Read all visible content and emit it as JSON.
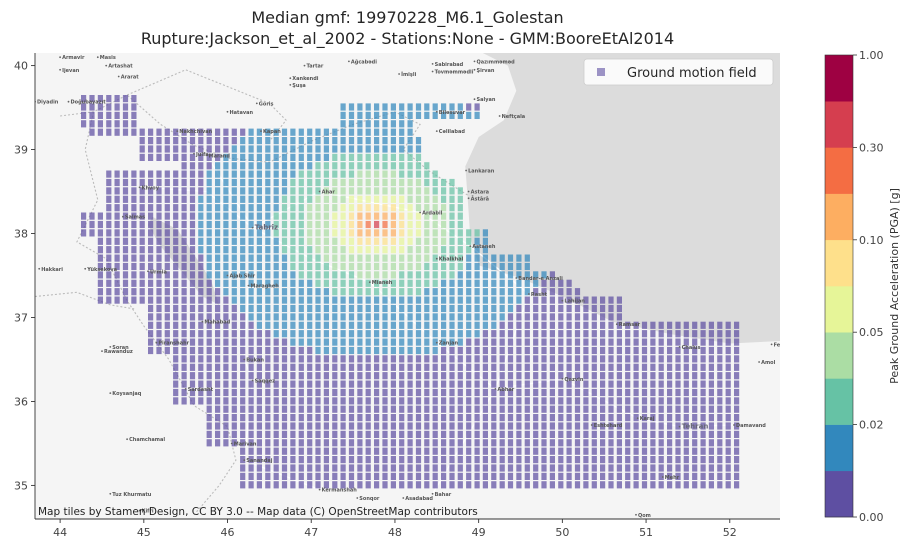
{
  "chart_data": {
    "type": "heatmap",
    "title": "Median gmf: 19970228_M6.1_Golestan",
    "subtitle": "Rupture:Jackson_et_al_2002 -  Stations:None - GMM:BooreEtAl2014",
    "x_ticks": [
      "44",
      "45",
      "46",
      "47",
      "48",
      "49",
      "50",
      "51",
      "52"
    ],
    "y_ticks": [
      "35",
      "36",
      "37",
      "38",
      "39",
      "40"
    ],
    "xlim": [
      43.7,
      52.6
    ],
    "ylim": [
      34.6,
      40.15
    ],
    "legend_label": "Ground motion field",
    "legend_location": "top-right",
    "colorbar_label": "Peak Ground Acceleration (PGA) [g]",
    "colorbar_ticks": [
      "0.00",
      "0.02",
      "0.05",
      "0.10",
      "0.30",
      "1.00"
    ],
    "colorbar_bounds": [
      0.0,
      0.01,
      0.02,
      0.03,
      0.05,
      0.07,
      0.1,
      0.2,
      0.3,
      0.5,
      1.0
    ],
    "colorbar_colors": [
      "#5e4fa2",
      "#3288bd",
      "#66c2a5",
      "#abdda4",
      "#e6f598",
      "#fee08b",
      "#fdae61",
      "#f46d43",
      "#d53e4f",
      "#9e0142"
    ],
    "epicenter": [
      47.8,
      38.1
    ],
    "grid_step_deg": 0.1,
    "attribution": "Map tiles by Stamen Design, CC BY 3.0 -- Map data (C) OpenStreetMap contributors",
    "map_labels": [
      {
        "name": "Armavir",
        "lon": 44.0,
        "lat": 40.1
      },
      {
        "name": "Masis",
        "lon": 44.45,
        "lat": 40.1
      },
      {
        "name": "Artashat",
        "lon": 44.55,
        "lat": 40.0
      },
      {
        "name": "Ijevan",
        "lon": 44.0,
        "lat": 39.95
      },
      {
        "name": "Ararat",
        "lon": 44.7,
        "lat": 39.87
      },
      {
        "name": "Diyadin",
        "lon": 43.7,
        "lat": 39.57
      },
      {
        "name": "Doğubayazıt",
        "lon": 44.1,
        "lat": 39.57
      },
      {
        "name": "Nakhchivan",
        "lon": 45.4,
        "lat": 39.22
      },
      {
        "name": "Julfa",
        "lon": 45.6,
        "lat": 38.95
      },
      {
        "name": "Hatavan",
        "lon": 46.0,
        "lat": 39.45
      },
      {
        "name": "Goris",
        "lon": 46.35,
        "lat": 39.55
      },
      {
        "name": "Kapan",
        "lon": 46.4,
        "lat": 39.22
      },
      {
        "name": "Xankendi",
        "lon": 46.75,
        "lat": 39.85
      },
      {
        "name": "Şuşa",
        "lon": 46.75,
        "lat": 39.77
      },
      {
        "name": "Tartar",
        "lon": 46.92,
        "lat": 40.0
      },
      {
        "name": "Ağcabədi",
        "lon": 47.45,
        "lat": 40.05
      },
      {
        "name": "İmişli",
        "lon": 48.05,
        "lat": 39.9
      },
      {
        "name": "Sabirabad",
        "lon": 48.45,
        "lat": 40.02
      },
      {
        "name": "Qazımməməd",
        "lon": 48.95,
        "lat": 40.05
      },
      {
        "name": "Şirvan",
        "lon": 48.95,
        "lat": 39.95
      },
      {
        "name": "Tovməmmədli",
        "lon": 48.45,
        "lat": 39.93
      },
      {
        "name": "Salyan",
        "lon": 48.95,
        "lat": 39.6
      },
      {
        "name": "Biləsuvar",
        "lon": 48.5,
        "lat": 39.45
      },
      {
        "name": "Neftçala",
        "lon": 49.25,
        "lat": 39.4
      },
      {
        "name": "Cəlilabad",
        "lon": 48.5,
        "lat": 39.22
      },
      {
        "name": "Lankaran",
        "lon": 48.85,
        "lat": 38.75
      },
      {
        "name": "Astara",
        "lon": 48.88,
        "lat": 38.5
      },
      {
        "name": "Āstārā",
        "lon": 48.88,
        "lat": 38.42
      },
      {
        "name": "Ahar",
        "lon": 47.1,
        "lat": 38.5
      },
      {
        "name": "Tabriz",
        "lon": 46.3,
        "lat": 38.07
      },
      {
        "name": "Marand",
        "lon": 45.75,
        "lat": 38.93
      },
      {
        "name": "Khvoy",
        "lon": 44.95,
        "lat": 38.55
      },
      {
        "name": "Salmas",
        "lon": 44.75,
        "lat": 38.2
      },
      {
        "name": "Ardabil",
        "lon": 48.3,
        "lat": 38.25
      },
      {
        "name": "Khalkhal",
        "lon": 48.5,
        "lat": 37.7
      },
      {
        "name": "Astaneh",
        "lon": 48.9,
        "lat": 37.85
      },
      {
        "name": "Mianeh",
        "lon": 47.7,
        "lat": 37.42
      },
      {
        "name": "Ajab Shir",
        "lon": 46.0,
        "lat": 37.5
      },
      {
        "name": "Maragheh",
        "lon": 46.25,
        "lat": 37.38
      },
      {
        "name": "Urmia",
        "lon": 45.05,
        "lat": 37.55
      },
      {
        "name": "Hakkari",
        "lon": 43.75,
        "lat": 37.58
      },
      {
        "name": "Yüksekova",
        "lon": 44.3,
        "lat": 37.58
      },
      {
        "name": "Mahabad",
        "lon": 45.7,
        "lat": 36.95
      },
      {
        "name": "Bukan",
        "lon": 46.2,
        "lat": 36.5
      },
      {
        "name": "Piranshahr",
        "lon": 45.15,
        "lat": 36.7
      },
      {
        "name": "Sardasht",
        "lon": 45.5,
        "lat": 36.15
      },
      {
        "name": "Saqqez",
        "lon": 46.3,
        "lat": 36.25
      },
      {
        "name": "Rawanduz",
        "lon": 44.5,
        "lat": 36.6
      },
      {
        "name": "Soran",
        "lon": 44.6,
        "lat": 36.65
      },
      {
        "name": "Koysanjaq",
        "lon": 44.6,
        "lat": 36.1
      },
      {
        "name": "Chamchamal",
        "lon": 44.8,
        "lat": 35.55
      },
      {
        "name": "Tuz Khurmatu",
        "lon": 44.6,
        "lat": 34.9
      },
      {
        "name": "Kifri",
        "lon": 44.95,
        "lat": 34.7
      },
      {
        "name": "Sanandaj",
        "lon": 46.2,
        "lat": 35.3
      },
      {
        "name": "Kermanshah",
        "lon": 47.1,
        "lat": 34.95
      },
      {
        "name": "Sonqor",
        "lon": 47.55,
        "lat": 34.85
      },
      {
        "name": "Asadabad",
        "lon": 48.1,
        "lat": 34.85
      },
      {
        "name": "Bahar",
        "lon": 48.45,
        "lat": 34.9
      },
      {
        "name": "Marivan",
        "lon": 46.05,
        "lat": 35.5
      },
      {
        "name": "Zanjan",
        "lon": 48.5,
        "lat": 36.7
      },
      {
        "name": "Abhar",
        "lon": 49.2,
        "lat": 36.15
      },
      {
        "name": "Qazvin",
        "lon": 50.0,
        "lat": 36.27
      },
      {
        "name": "Karaj",
        "lon": 50.9,
        "lat": 35.8
      },
      {
        "name": "Tehran",
        "lon": 51.4,
        "lat": 35.7
      },
      {
        "name": "Rasht",
        "lon": 49.6,
        "lat": 37.28
      },
      {
        "name": "Bandar-e Anzali",
        "lon": 49.45,
        "lat": 37.47
      },
      {
        "name": "Lahijan",
        "lon": 50.0,
        "lat": 37.2
      },
      {
        "name": "Chalus",
        "lon": 51.4,
        "lat": 36.65
      },
      {
        "name": "Amol",
        "lon": 52.35,
        "lat": 36.47
      },
      {
        "name": "Damavand",
        "lon": 52.05,
        "lat": 35.72
      },
      {
        "name": "Ramsar",
        "lon": 50.65,
        "lat": 36.92
      },
      {
        "name": "Fereydun Kenar",
        "lon": 52.5,
        "lat": 36.68
      },
      {
        "name": "Mehr",
        "lon": 51.2,
        "lat": 35.1
      },
      {
        "name": "Eshtehard",
        "lon": 50.35,
        "lat": 35.72
      },
      {
        "name": "Qom",
        "lon": 50.88,
        "lat": 34.65
      }
    ],
    "visible_map_labels": [
      "Tabriz",
      "Tehran"
    ]
  }
}
